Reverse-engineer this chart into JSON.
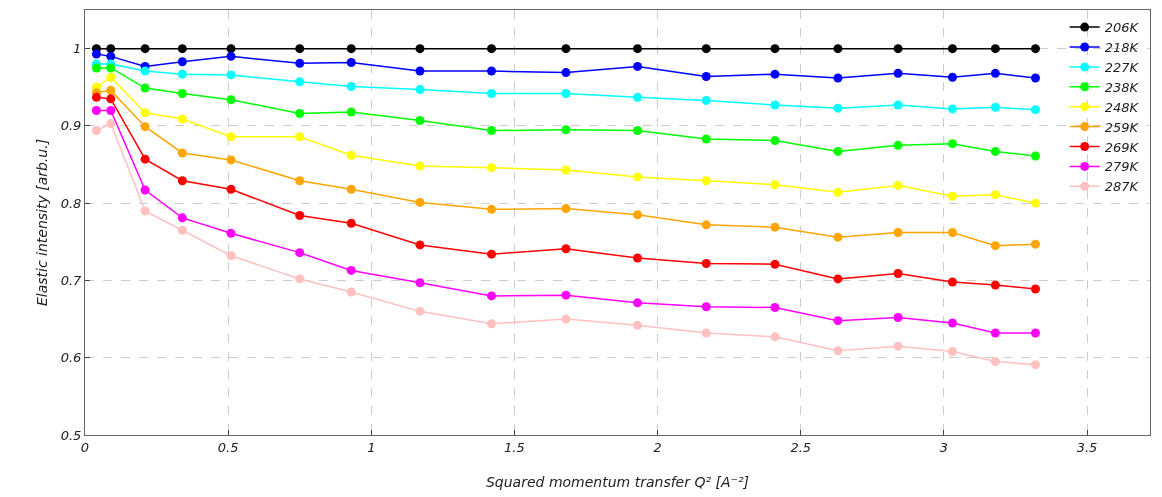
{
  "chart_data": {
    "type": "line",
    "xlabel": "Squared momentum transfer Q² [A⁻²]",
    "ylabel": "Elastic intensity [arb.u.]",
    "x": [
      0.04,
      0.09,
      0.21,
      0.34,
      0.51,
      0.75,
      0.93,
      1.17,
      1.42,
      1.68,
      1.93,
      2.17,
      2.41,
      2.63,
      2.84,
      3.03,
      3.18,
      3.32
    ],
    "xlim": [
      0,
      3.72
    ],
    "xticks": [
      0,
      0.5,
      1,
      1.5,
      2,
      2.5,
      3,
      3.5
    ],
    "ylim": [
      0.5,
      1.05
    ],
    "yticks": [
      0.5,
      0.6,
      0.7,
      0.8,
      0.9,
      1
    ],
    "grid": true,
    "legend": "top right",
    "marker": "circle",
    "line_style": "solid",
    "series": [
      {
        "name": "206K",
        "color": "#000000",
        "values": [
          1,
          1,
          1,
          1,
          1,
          1,
          1,
          1,
          1,
          1,
          1,
          1,
          1,
          1,
          1,
          1,
          1,
          1
        ]
      },
      {
        "name": "218K",
        "color": "#0000ff",
        "values": [
          0.993,
          0.99,
          0.977,
          0.983,
          0.99,
          0.981,
          0.982,
          0.971,
          0.971,
          0.969,
          0.977,
          0.964,
          0.967,
          0.962,
          0.968,
          0.963,
          0.968,
          0.962
        ]
      },
      {
        "name": "227K",
        "color": "#00ffff",
        "values": [
          0.98,
          0.98,
          0.971,
          0.967,
          0.966,
          0.957,
          0.951,
          0.947,
          0.942,
          0.942,
          0.937,
          0.933,
          0.927,
          0.923,
          0.927,
          0.922,
          0.924,
          0.921
        ]
      },
      {
        "name": "238K",
        "color": "#00ff00",
        "values": [
          0.975,
          0.975,
          0.949,
          0.942,
          0.934,
          0.916,
          0.918,
          0.907,
          0.894,
          0.895,
          0.894,
          0.883,
          0.881,
          0.867,
          0.875,
          0.877,
          0.867,
          0.861
        ]
      },
      {
        "name": "248K",
        "color": "#ffff00",
        "values": [
          0.95,
          0.963,
          0.917,
          0.909,
          0.886,
          0.886,
          0.862,
          0.848,
          0.846,
          0.843,
          0.834,
          0.829,
          0.824,
          0.814,
          0.823,
          0.809,
          0.811,
          0.8
        ]
      },
      {
        "name": "259K",
        "color": "#ffa500",
        "values": [
          0.943,
          0.946,
          0.899,
          0.865,
          0.856,
          0.829,
          0.818,
          0.801,
          0.792,
          0.793,
          0.785,
          0.772,
          0.769,
          0.756,
          0.762,
          0.762,
          0.745,
          0.747
        ]
      },
      {
        "name": "269K",
        "color": "#ff0000",
        "values": [
          0.937,
          0.935,
          0.857,
          0.829,
          0.818,
          0.784,
          0.774,
          0.746,
          0.734,
          0.741,
          0.729,
          0.722,
          0.721,
          0.702,
          0.709,
          0.698,
          0.694,
          0.689
        ]
      },
      {
        "name": "279K",
        "color": "#ff00ff",
        "values": [
          0.92,
          0.92,
          0.817,
          0.781,
          0.761,
          0.736,
          0.713,
          0.697,
          0.68,
          0.681,
          0.671,
          0.666,
          0.665,
          0.648,
          0.652,
          0.645,
          0.632,
          0.632
        ]
      },
      {
        "name": "287K",
        "color": "#ffc0c0",
        "values": [
          0.894,
          0.903,
          0.79,
          0.765,
          0.732,
          0.702,
          0.685,
          0.66,
          0.644,
          0.65,
          0.642,
          0.632,
          0.627,
          0.609,
          0.615,
          0.608,
          0.595,
          0.591
        ]
      }
    ]
  }
}
